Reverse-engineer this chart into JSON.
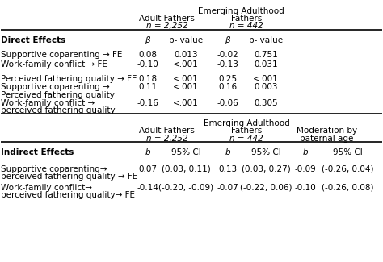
{
  "title_line1": "Emerging Adulthood",
  "col_headers": [
    [
      "",
      "Adult Fathers",
      "Emerging Adulthood\nFathers",
      ""
    ],
    [
      "",
      "n = 2,252",
      "n = 442",
      ""
    ]
  ],
  "direct_header": [
    "Direct Effects",
    "β",
    "p- value",
    "β",
    "p- value",
    "",
    ""
  ],
  "direct_rows": [
    [
      "Supportive coparenting → FE",
      "0.08",
      "0.013",
      "-0.02",
      "0.751",
      "",
      ""
    ],
    [
      "Work-family conflict → FE",
      "-0.10",
      "<.001",
      "-0.13",
      "0.031",
      "",
      ""
    ],
    [
      "",
      "",
      "",
      "",
      "",
      "",
      ""
    ],
    [
      "Perceived fathering quality → FE",
      "0.18",
      "<.001",
      "0.25",
      "<.001",
      "",
      ""
    ],
    [
      "Supportive coparenting →\nPerceived fathering quality",
      "0.11",
      "<.001",
      "0.16",
      "0.003",
      "",
      ""
    ],
    [
      "Work-family conflict →\nperceived fathering quality",
      "-0.16",
      "<.001",
      "-0.06",
      "0.305",
      "",
      ""
    ]
  ],
  "indirect_col_headers": [
    [
      "",
      "Adult Fathers",
      "Emerging Adulthood\nFathers",
      "Moderation by\npaternal age"
    ],
    [
      "",
      "n = 2,252",
      "n = 442",
      ""
    ]
  ],
  "indirect_header": [
    "Indirect Effects",
    "b",
    "95% CI",
    "b",
    "95% CI",
    "b",
    "95% CI"
  ],
  "indirect_rows": [
    [
      "Supportive coparenting→\nperceived fathering quality → FE",
      "0.07",
      "(0.03, 0.11)",
      "0.13",
      "(0.03, 0.27)",
      "-0.09",
      "(-0.26, 0.04)"
    ],
    [
      "Work-family conflict→\nperceived fathering quality→ FE",
      "-0.14",
      "(-0.20, -0.09)",
      "-0.07",
      "(-0.22, 0.06)",
      "-0.10",
      "(-0.26, 0.08)"
    ]
  ],
  "background_color": "#ffffff",
  "text_color": "#000000",
  "font_size": 7.5,
  "header_font_size": 7.5
}
